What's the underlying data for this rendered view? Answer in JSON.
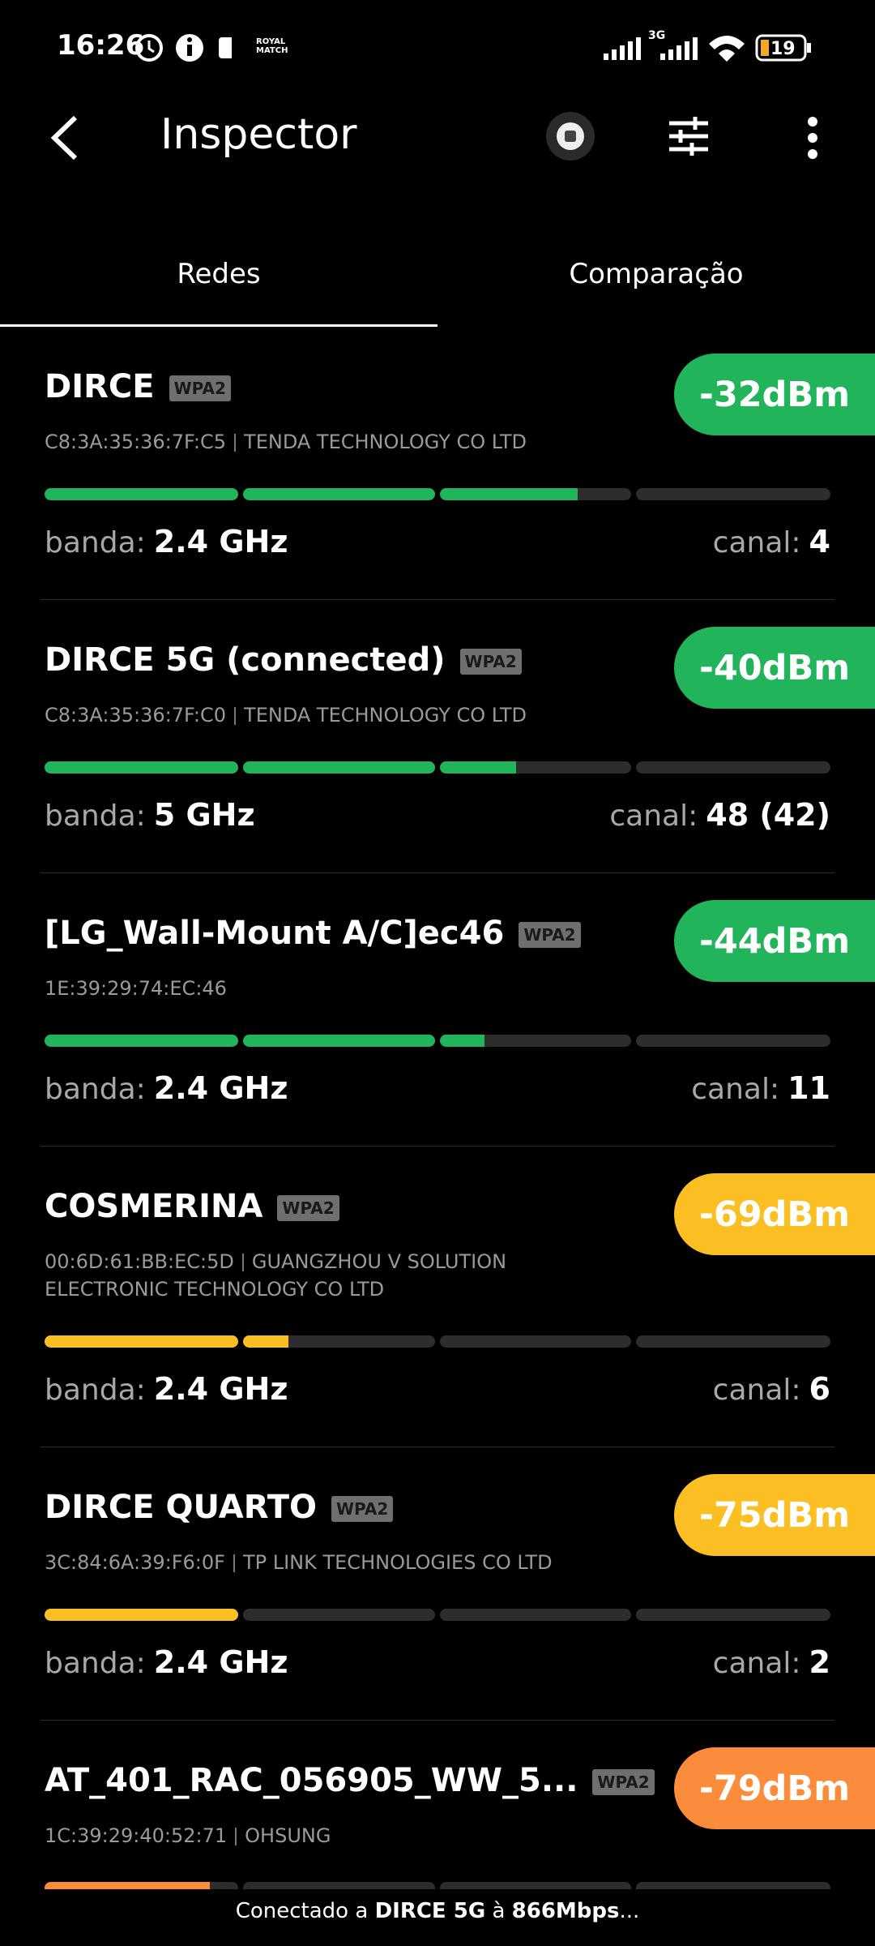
{
  "status_bar": {
    "time": "16:26",
    "app_icon": "ROYAL MATCH",
    "network_type": "3G",
    "battery": "19"
  },
  "header": {
    "title": "Inspector"
  },
  "tabs": [
    "Redes",
    "Comparação"
  ],
  "networks": [
    {
      "name": "DIRCE",
      "security": "WPA2",
      "mac": "C8:3A:35:36:7F:C5",
      "vendor": "TENDA TECHNOLOGY CO LTD",
      "signal": "-32dBm",
      "band_label": "banda:",
      "band": "2.4 GHz",
      "channel_label": "canal:",
      "channel": "4"
    },
    {
      "name": "DIRCE 5G (connected)",
      "security": "WPA2",
      "mac": "C8:3A:35:36:7F:C0",
      "vendor": "TENDA TECHNOLOGY CO LTD",
      "signal": "-40dBm",
      "band_label": "banda:",
      "band": "5 GHz",
      "channel_label": "canal:",
      "channel": "48 (42)"
    },
    {
      "name": "[LG_Wall-Mount A/C]ec46",
      "security": "WPA2",
      "mac": "1E:39:29:74:EC:46",
      "signal": "-44dBm",
      "band_label": "banda:",
      "band": "2.4 GHz",
      "channel_label": "canal:",
      "channel": "11"
    },
    {
      "name": "COSMERINA",
      "security": "WPA2",
      "mac": "00:6D:61:BB:EC:5D",
      "vendor": "GUANGZHOU V SOLUTION ELECTRONIC TECHNOLOGY CO LTD",
      "signal": "-69dBm",
      "band_label": "banda:",
      "band": "2.4 GHz",
      "channel_label": "canal:",
      "channel": "6"
    },
    {
      "name": "DIRCE QUARTO",
      "security": "WPA2",
      "mac": "3C:84:6A:39:F6:0F",
      "vendor": "TP LINK TECHNOLOGIES CO LTD",
      "signal": "-75dBm",
      "band_label": "banda:",
      "band": "2.4 GHz",
      "channel_label": "canal:",
      "channel": "2"
    },
    {
      "name": "AT_401_RAC_056905_WW_5...",
      "security": "WPA2",
      "mac": "1C:39:29:40:52:71",
      "vendor": "OHSUNG",
      "signal": "-79dBm"
    }
  ],
  "footer": {
    "prefix": "Conectado a",
    "network": "DIRCE 5G",
    "middle": "à",
    "speed": "866Mbps",
    "suffix": "..."
  }
}
